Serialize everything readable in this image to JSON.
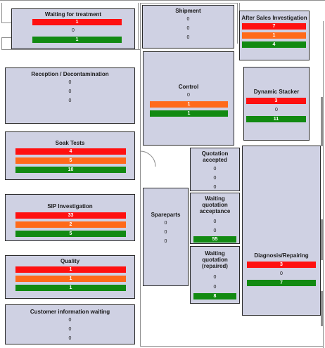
{
  "colors": {
    "red": "#ff1010",
    "orange": "#ff6a1a",
    "green": "#128a12",
    "zone": "#cfd1e3"
  },
  "zones": {
    "waiting_treatment": {
      "title": "Waiting for treatment",
      "red": "1",
      "neutral": "0",
      "green": "1"
    },
    "shipment": {
      "title": "Shipment",
      "v1": "0",
      "v2": "0",
      "v3": "0"
    },
    "after_sales": {
      "title": "After Sales Investigation",
      "red": "7",
      "orange": "1",
      "green": "4"
    },
    "reception": {
      "title": "Reception / Decontamination",
      "v1": "0",
      "v2": "0",
      "v3": "0"
    },
    "control": {
      "title": "Control",
      "neutral": "0",
      "orange": "1",
      "green": "1"
    },
    "dynamic_stacker": {
      "title": "Dynamic Stacker",
      "red": "3",
      "neutral": "0",
      "green": "11"
    },
    "soak_tests": {
      "title": "Soak Tests",
      "red": "4",
      "orange": "5",
      "green": "10"
    },
    "quotation_accepted": {
      "title": "Quotation accepted",
      "v1": "0",
      "v2": "0",
      "v3": "0"
    },
    "sip_investigation": {
      "title": "SIP Investigation",
      "red": "33",
      "orange": "2",
      "green": "5"
    },
    "spareparts": {
      "title": "Spareparts",
      "v1": "0",
      "v2": "0",
      "v3": "0"
    },
    "waiting_quotation_acceptance": {
      "title_l1": "Waiting",
      "title_l2": "quotation",
      "title_l3": "acceptance",
      "v1": "0",
      "v2": "0",
      "green": "55"
    },
    "diagnosis_repairing": {
      "title": "Diagnosis/Repairing",
      "red": "3",
      "neutral": "0",
      "green": "7"
    },
    "quality": {
      "title": "Quality",
      "red": "1",
      "orange": "1",
      "green": "1"
    },
    "waiting_quotation_repaired": {
      "title_l1": "Waiting",
      "title_l2": "quotation",
      "title_l3": "(repaired)",
      "v1": "0",
      "v2": "0",
      "green": "8"
    },
    "customer_info_waiting": {
      "title": "Customer information waiting",
      "v1": "0",
      "v2": "0",
      "v3": "0"
    }
  }
}
